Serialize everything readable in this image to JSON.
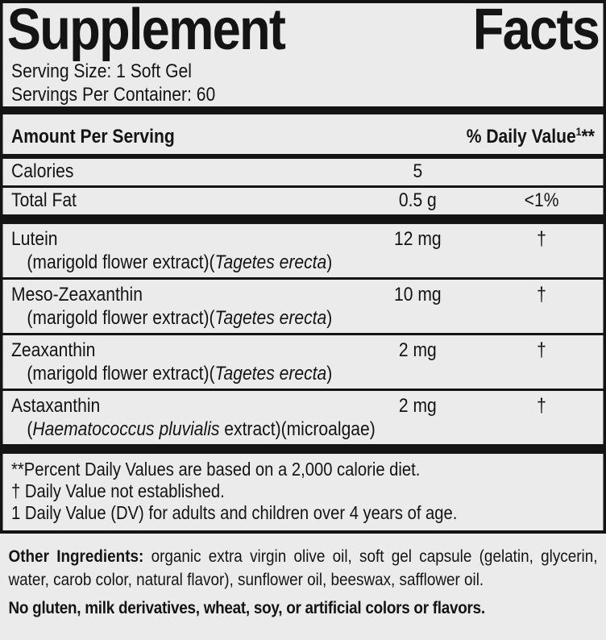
{
  "title_words": [
    "Supplement",
    "Facts"
  ],
  "serving_size": "Serving Size: 1 Soft Gel",
  "servings_per_container": "Servings Per Container: 60",
  "column_headers": {
    "amount": "Amount Per Serving",
    "dv_main": "% Daily Value",
    "dv_sup": "1",
    "dv_asterisks": "**"
  },
  "summary_rows": [
    {
      "name": "Calories",
      "amount": "5",
      "dv": ""
    },
    {
      "name": "Total Fat",
      "amount": "0.5 g",
      "dv": "<1%"
    }
  ],
  "nutrients": [
    {
      "name": "Lutein",
      "amount": "12 mg",
      "dv": "†",
      "detail_pre": "(marigold flower extract)(",
      "detail_italic": "Tagetes erecta",
      "detail_post": ")"
    },
    {
      "name": "Meso-Zeaxanthin",
      "amount": "10 mg",
      "dv": "†",
      "detail_pre": "(marigold flower extract)(",
      "detail_italic": "Tagetes erecta",
      "detail_post": ")"
    },
    {
      "name": "Zeaxanthin",
      "amount": "2 mg",
      "dv": "†",
      "detail_pre": "(marigold flower extract)(",
      "detail_italic": "Tagetes erecta",
      "detail_post": ")"
    },
    {
      "name": "Astaxanthin",
      "amount": "2 mg",
      "dv": "†",
      "detail_pre": "(",
      "detail_italic": "Haematococcus pluvialis",
      "detail_post": " extract)(microalgae)"
    }
  ],
  "footnotes": [
    "**Percent Daily Values are based on a 2,000 calorie diet.",
    "† Daily Value not established.",
    "1 Daily Value (DV) for adults and children over 4 years of age."
  ],
  "other_ingredients": {
    "label": "Other Ingredients:",
    "text": " organic extra virgin olive oil, soft gel capsule (gelatin, glycerin, water, carob color, natural flavor), sunflower oil, beeswax, safflower oil."
  },
  "allergen_statement": "No gluten, milk derivatives, wheat, soy, or artificial colors or flavors.",
  "colors": {
    "background": "#ebebeb",
    "text": "#141414",
    "rule": "#141414"
  }
}
